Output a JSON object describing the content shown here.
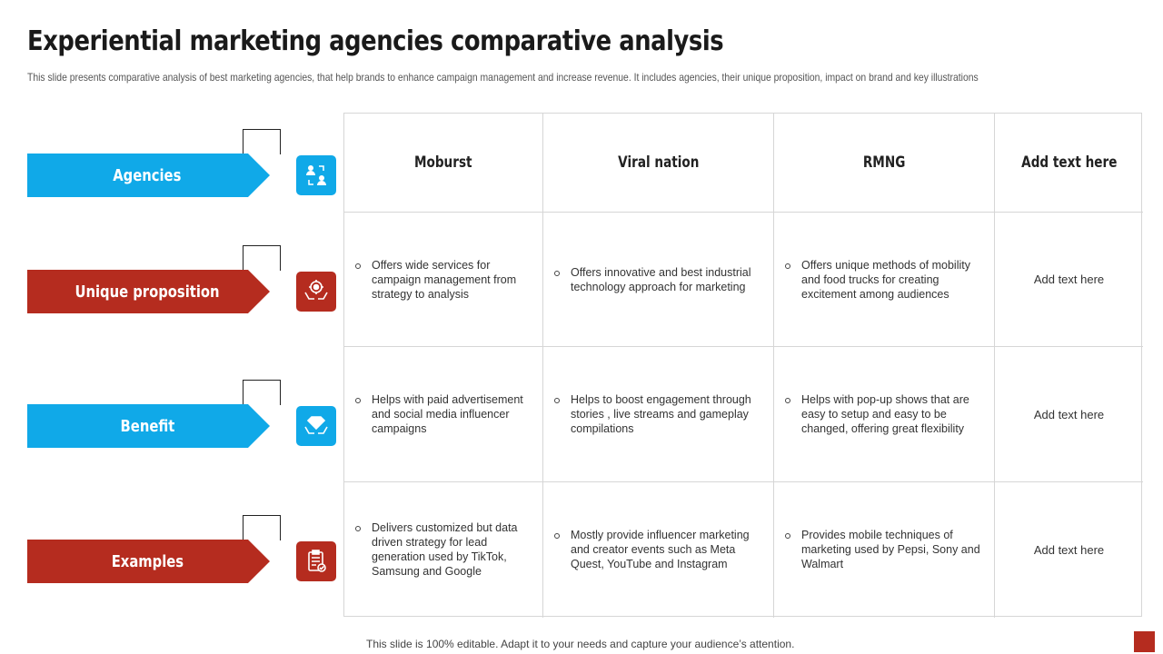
{
  "header": {
    "title": "Experiential marketing agencies comparative analysis",
    "subtitle": "This slide presents comparative analysis of best marketing agencies, that help brands to enhance campaign management and increase revenue. It includes agencies, their unique proposition, impact on brand and key illustrations"
  },
  "rows": [
    {
      "label": "Agencies",
      "color": "#10a9e8",
      "icon": "people-exchange-icon"
    },
    {
      "label": "Unique proposition",
      "color": "#b52c1f",
      "icon": "target-hands-icon"
    },
    {
      "label": "Benefit",
      "color": "#10a9e8",
      "icon": "diamond-hands-icon"
    },
    {
      "label": "Examples",
      "color": "#b52c1f",
      "icon": "clipboard-check-icon"
    }
  ],
  "table": {
    "columns": [
      "Moburst",
      "Viral nation",
      "RMNG",
      "Add text here"
    ],
    "unique_proposition": [
      "Offers wide services for campaign management from strategy to analysis",
      "Offers innovative  and best industrial technology approach for marketing",
      "Offers unique methods of mobility and food trucks for creating excitement among audiences",
      "Add text here"
    ],
    "benefit": [
      "Helps with paid advertisement and social media influencer campaigns",
      "Helps to boost engagement through stories , live streams and gameplay compilations",
      "Helps with pop-up shows that are easy to setup and easy to be changed, offering  great flexibility",
      "Add text here"
    ],
    "examples": [
      "Delivers  customized but data driven  strategy for lead generation used by TikTok, Samsung and Google",
      "Mostly provide  influencer marketing and creator events such as Meta Quest, YouTube and Instagram",
      "Provides mobile techniques of marketing used by Pepsi, Sony and Walmart",
      "Add text here"
    ]
  },
  "footer": {
    "note": "This slide is 100% editable. Adapt it to your needs and capture your audience’s attention."
  }
}
